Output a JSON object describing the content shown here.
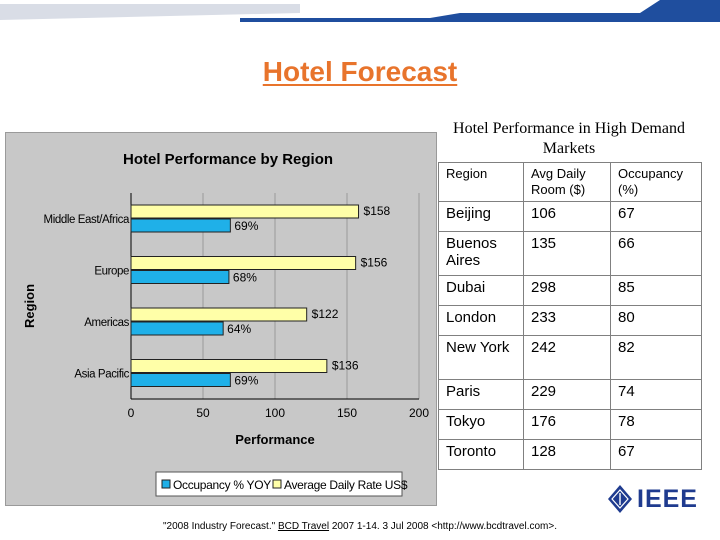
{
  "slide": {
    "title": "Hotel Forecast",
    "caption": "Hotel Performance in High Demand Markets",
    "footer_prefix": "\"2008 Industry Forecast.\"",
    "footer_link": "BCD Travel",
    "footer_suffix": "2007 1-14. 3 Jul 2008 <http://www.bcdtravel.com>.",
    "logo_text": "IEEE",
    "colors": {
      "title": "#E8742C",
      "band_dark": "#1F4E9E",
      "band_light": "#D9DDE6",
      "occupancy_bar": "#1FB0E8",
      "rate_bar": "#FFFFA8",
      "chart_bg": "#C8C8C8",
      "logo": "#1F3B8F"
    }
  },
  "chart_data": {
    "type": "bar",
    "orientation": "horizontal",
    "title": "Hotel Performance by Region",
    "xlabel": "Performance",
    "ylabel": "Region",
    "xlim": [
      0,
      200
    ],
    "xticks": [
      0,
      50,
      100,
      150,
      200
    ],
    "grid": true,
    "legend_position": "bottom",
    "categories": [
      "Middle East/Africa",
      "Europe",
      "Americas",
      "Asia Pacific"
    ],
    "series": [
      {
        "name": "Average Daily Rate US$",
        "values": [
          158,
          156,
          122,
          136
        ],
        "labels": [
          "$158",
          "$156",
          "$122",
          "$136"
        ],
        "color": "#FFFFA8"
      },
      {
        "name": "Occupancy % YOY",
        "values": [
          69,
          68,
          64,
          69
        ],
        "labels": [
          "69%",
          "68%",
          "64%",
          "69%"
        ],
        "color": "#1FB0E8"
      }
    ]
  },
  "table": {
    "headers": [
      "Region",
      "Avg Daily Room ($)",
      "Occupancy (%)"
    ],
    "rows": [
      [
        "Beijing",
        "106",
        "67"
      ],
      [
        "Buenos Aires",
        "135",
        "66"
      ],
      [
        "Dubai",
        "298",
        "85"
      ],
      [
        "London",
        "233",
        "80"
      ],
      [
        "New York",
        "242",
        "82"
      ],
      [
        "Paris",
        "229",
        "74"
      ],
      [
        "Tokyo",
        "176",
        "78"
      ],
      [
        "Toronto",
        "128",
        "67"
      ]
    ]
  }
}
